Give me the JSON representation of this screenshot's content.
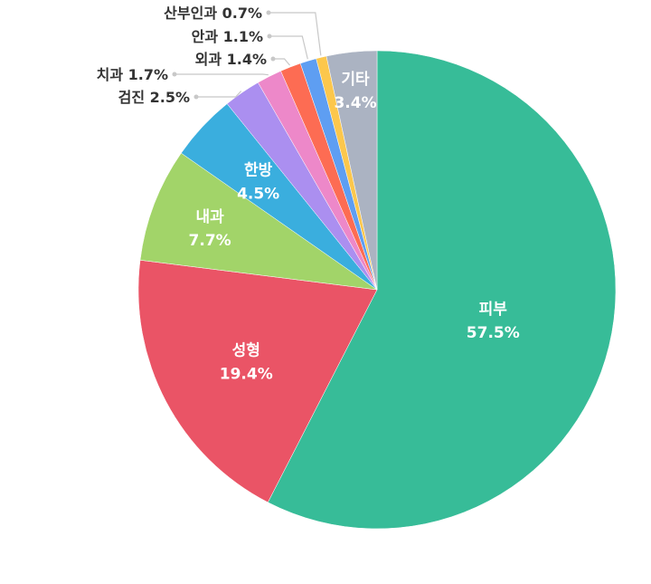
{
  "chart_data": {
    "type": "pie",
    "title": "",
    "slices": [
      {
        "label": "피부",
        "value": 57.5,
        "display": "57.5%",
        "color": "#37bc98"
      },
      {
        "label": "성형",
        "value": 19.4,
        "display": "19.4%",
        "color": "#ea5466"
      },
      {
        "label": "내과",
        "value": 7.7,
        "display": "7.7%",
        "color": "#a2d469"
      },
      {
        "label": "한방",
        "value": 4.5,
        "display": "4.5%",
        "color": "#3aaede"
      },
      {
        "label": "검진",
        "value": 2.5,
        "display": "2.5%",
        "color": "#ab8ff0"
      },
      {
        "label": "치과",
        "value": 1.7,
        "display": "1.7%",
        "color": "#ed88c9"
      },
      {
        "label": "외과",
        "value": 1.4,
        "display": "1.4%",
        "color": "#fd6c53"
      },
      {
        "label": "안과",
        "value": 1.1,
        "display": "1.1%",
        "color": "#5e9ef2"
      },
      {
        "label": "산부인과",
        "value": 0.7,
        "display": "0.7%",
        "color": "#fcc74c"
      },
      {
        "label": "기타",
        "value": 3.4,
        "display": "3.4%",
        "color": "#abb3c2"
      }
    ],
    "start": "12 o'clock",
    "direction": "clockwise",
    "legend": "none",
    "callout_color": "#c8c8c8"
  }
}
